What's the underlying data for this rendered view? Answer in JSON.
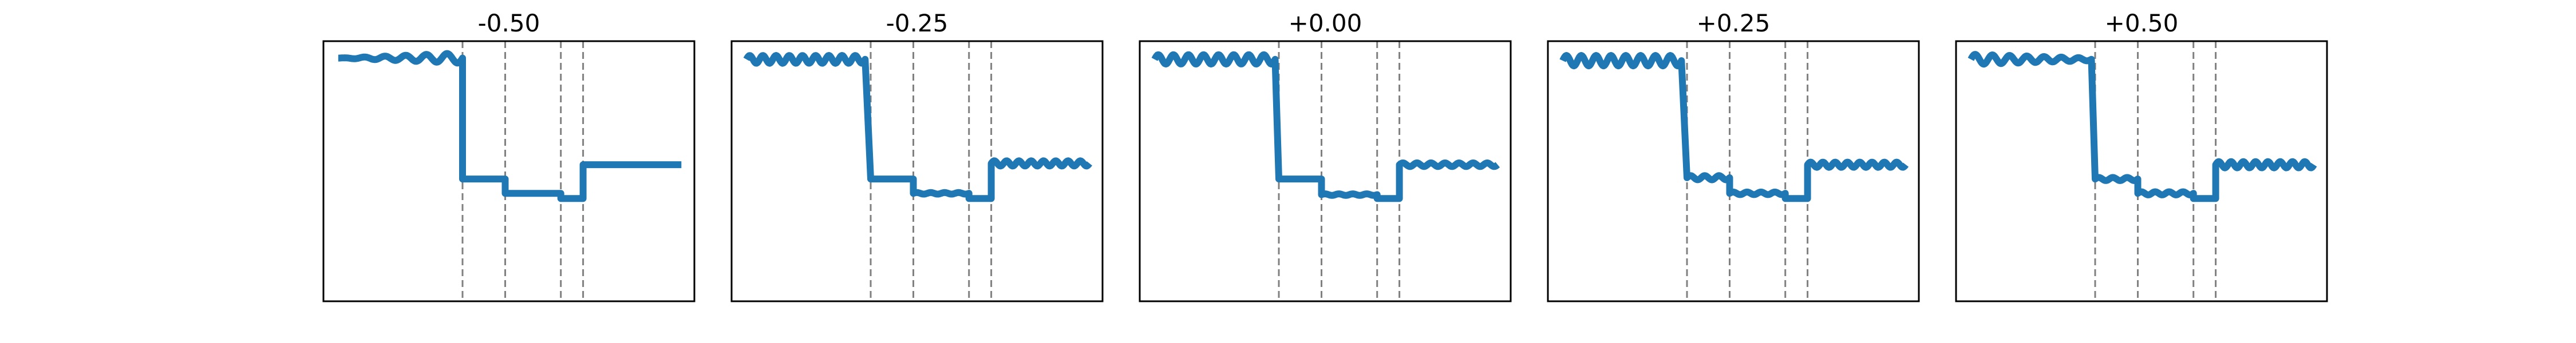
{
  "chart_data": [
    {
      "type": "line",
      "title": "-0.50",
      "xlim": [
        0,
        1
      ],
      "ylim": [
        0,
        1
      ],
      "grid": false,
      "series_color": "#1f77b4",
      "vlines_color": "#808080",
      "vlines": [
        0.375,
        0.49,
        0.64,
        0.7
      ],
      "segments": [
        {
          "x": [
            0.04,
            0.375
          ],
          "y": 0.935,
          "wave_amp": 0.0,
          "wave_amp_end": 0.02,
          "cycles": 6
        },
        {
          "x": [
            0.375,
            0.49
          ],
          "y": 0.47,
          "wave_amp": 0.0,
          "cycles": 0
        },
        {
          "x": [
            0.49,
            0.64
          ],
          "y": 0.415,
          "wave_amp": 0.0,
          "cycles": 0
        },
        {
          "x": [
            0.64,
            0.7
          ],
          "y": 0.395,
          "wave_amp": 0.0,
          "cycles": 0
        },
        {
          "x": [
            0.7,
            0.965
          ],
          "y": 0.525,
          "wave_amp": 0.0,
          "cycles": 0
        }
      ]
    },
    {
      "type": "line",
      "title": "-0.25",
      "xlim": [
        0,
        1
      ],
      "ylim": [
        0,
        1
      ],
      "grid": false,
      "series_color": "#1f77b4",
      "vlines_color": "#808080",
      "vlines": [
        0.375,
        0.49,
        0.64,
        0.7
      ],
      "segments": [
        {
          "x": [
            0.04,
            0.36
          ],
          "y": 0.93,
          "wave_amp": 0.015,
          "cycles": 9
        },
        {
          "x": [
            0.375,
            0.49
          ],
          "y": 0.47,
          "wave_amp": 0.0,
          "cycles": 0
        },
        {
          "x": [
            0.49,
            0.64
          ],
          "y": 0.415,
          "wave_amp": 0.003,
          "cycles": 4
        },
        {
          "x": [
            0.64,
            0.7
          ],
          "y": 0.395,
          "wave_amp": 0.0,
          "cycles": 0
        },
        {
          "x": [
            0.7,
            0.965
          ],
          "y": 0.53,
          "wave_amp": 0.01,
          "cycles": 8
        }
      ]
    },
    {
      "type": "line",
      "title": "+0.00",
      "xlim": [
        0,
        1
      ],
      "ylim": [
        0,
        1
      ],
      "grid": false,
      "series_color": "#1f77b4",
      "vlines_color": "#808080",
      "vlines": [
        0.375,
        0.49,
        0.64,
        0.7
      ],
      "segments": [
        {
          "x": [
            0.04,
            0.365
          ],
          "y": 0.93,
          "wave_amp": 0.018,
          "cycles": 8
        },
        {
          "x": [
            0.375,
            0.49
          ],
          "y": 0.47,
          "wave_amp": 0.0,
          "cycles": 0
        },
        {
          "x": [
            0.49,
            0.64
          ],
          "y": 0.41,
          "wave_amp": 0.003,
          "cycles": 4
        },
        {
          "x": [
            0.64,
            0.7
          ],
          "y": 0.395,
          "wave_amp": 0.0,
          "cycles": 0
        },
        {
          "x": [
            0.7,
            0.965
          ],
          "y": 0.525,
          "wave_amp": 0.007,
          "cycles": 7
        }
      ]
    },
    {
      "type": "line",
      "title": "+0.25",
      "xlim": [
        0,
        1
      ],
      "ylim": [
        0,
        1
      ],
      "grid": false,
      "series_color": "#1f77b4",
      "vlines_color": "#808080",
      "vlines": [
        0.375,
        0.49,
        0.64,
        0.7
      ],
      "segments": [
        {
          "x": [
            0.04,
            0.36
          ],
          "y": 0.925,
          "wave_amp": 0.02,
          "cycles": 8
        },
        {
          "x": [
            0.375,
            0.49
          ],
          "y": 0.475,
          "wave_amp": 0.008,
          "cycles": 3
        },
        {
          "x": [
            0.49,
            0.64
          ],
          "y": 0.415,
          "wave_amp": 0.005,
          "cycles": 4
        },
        {
          "x": [
            0.64,
            0.7
          ],
          "y": 0.395,
          "wave_amp": 0.0,
          "cycles": 0
        },
        {
          "x": [
            0.7,
            0.965
          ],
          "y": 0.525,
          "wave_amp": 0.01,
          "cycles": 8
        }
      ]
    },
    {
      "type": "line",
      "title": "+0.50",
      "xlim": [
        0,
        1
      ],
      "ylim": [
        0,
        1
      ],
      "grid": false,
      "series_color": "#1f77b4",
      "vlines_color": "#808080",
      "vlines": [
        0.375,
        0.49,
        0.64,
        0.7
      ],
      "segments": [
        {
          "x": [
            0.04,
            0.365
          ],
          "y": 0.93,
          "wave_amp": 0.02,
          "wave_amp_end": 0.005,
          "cycles": 7
        },
        {
          "x": [
            0.375,
            0.49
          ],
          "y": 0.47,
          "wave_amp": 0.006,
          "cycles": 3
        },
        {
          "x": [
            0.49,
            0.64
          ],
          "y": 0.415,
          "wave_amp": 0.006,
          "cycles": 4
        },
        {
          "x": [
            0.64,
            0.7
          ],
          "y": 0.395,
          "wave_amp": 0.0,
          "cycles": 0
        },
        {
          "x": [
            0.7,
            0.965
          ],
          "y": 0.525,
          "wave_amp": 0.012,
          "cycles": 8
        }
      ]
    }
  ]
}
